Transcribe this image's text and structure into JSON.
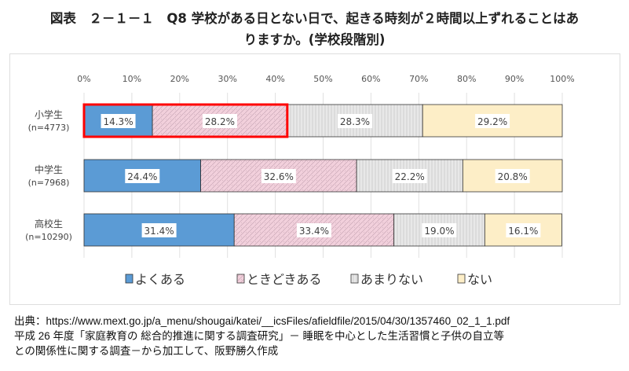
{
  "chart_data": {
    "type": "bar",
    "orientation": "horizontal",
    "stacked": true,
    "title_line1": "図表　２－１－１　Q8 学校がある日とない日で、起きる時刻が２時間以上ずれることはあ",
    "title_line2": "りますか。(学校段階別)",
    "categories": [
      {
        "name": "小学生",
        "n": "(n=4773)"
      },
      {
        "name": "中学生",
        "n": "(n=7968)"
      },
      {
        "name": "高校生",
        "n": "(n=10290)"
      }
    ],
    "series": [
      {
        "name": "よくある",
        "color": "#5b9bd5",
        "values": [
          14.3,
          24.4,
          31.4
        ]
      },
      {
        "name": "ときどきある",
        "color": "#f2d0dc",
        "values": [
          28.2,
          32.6,
          33.4
        ]
      },
      {
        "name": "あまりない",
        "color": "#e8e8e8",
        "values": [
          28.3,
          22.2,
          19.0
        ]
      },
      {
        "name": "ない",
        "color": "#fdeec7",
        "values": [
          29.2,
          20.8,
          16.1
        ]
      }
    ],
    "xlim": [
      0,
      100
    ],
    "xticks": [
      "0%",
      "10%",
      "20%",
      "30%",
      "40%",
      "50%",
      "60%",
      "70%",
      "80%",
      "90%",
      "100%"
    ],
    "grid": true,
    "legend": "bottom",
    "highlight": {
      "category": "小学生",
      "series": [
        "よくある",
        "ときどきある"
      ],
      "color": "#ff0000"
    }
  },
  "source": {
    "line1": "出典：https://www.mext.go.jp/a_menu/shougai/katei/__icsFiles/afieldfile/2015/04/30/1357460_02_1_1.pdf",
    "line2": "平成 26 年度「家庭教育の 総合的推進に関する調査研究」－ 睡眠を中心とした生活習慣と子供の自立等",
    "line3": "との関係性に関する調査－から加工して、阪野勝久作成"
  }
}
